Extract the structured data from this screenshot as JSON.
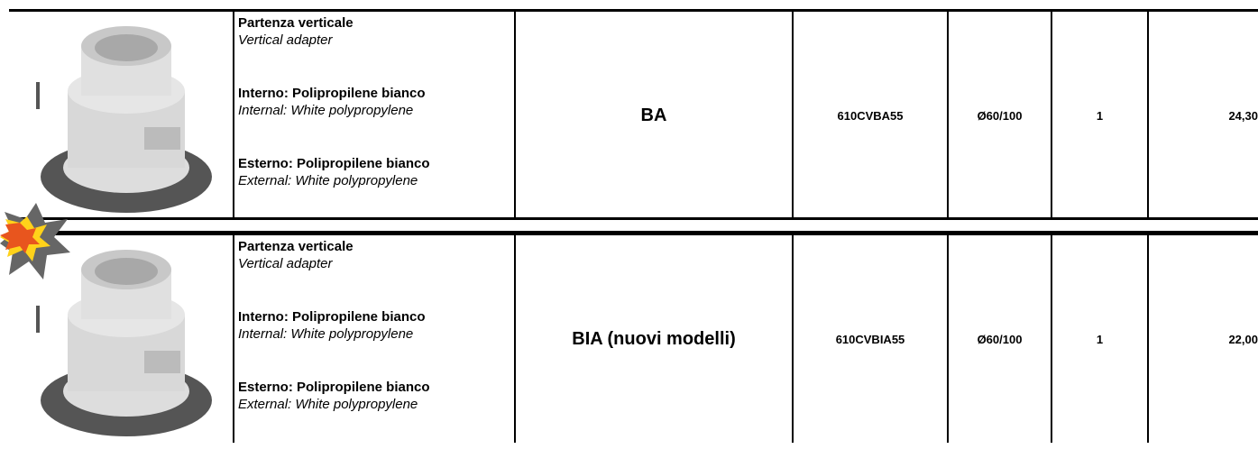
{
  "rows": [
    {
      "description": [
        {
          "it": "Partenza verticale",
          "en": "Vertical adapter"
        },
        {
          "it": "Interno: Polipropilene bianco",
          "en": "Internal: White polypropylene"
        },
        {
          "it": "Esterno: Polipropilene bianco",
          "en": "External: White polypropylene"
        }
      ],
      "model": "BA",
      "code": "610CVBA55",
      "diameter": "Ø60/100",
      "quantity": "1",
      "price": "24,30"
    },
    {
      "description": [
        {
          "it": "Partenza verticale",
          "en": "Vertical adapter"
        },
        {
          "it": "Interno: Polipropilene bianco",
          "en": "Internal: White polypropylene"
        },
        {
          "it": "Esterno: Polipropilene bianco",
          "en": "External: White polypropylene"
        }
      ],
      "model": "BIA (nuovi modelli)",
      "code": "610CVBIA55",
      "diameter": "Ø60/100",
      "quantity": "1",
      "price": "22,00"
    }
  ]
}
